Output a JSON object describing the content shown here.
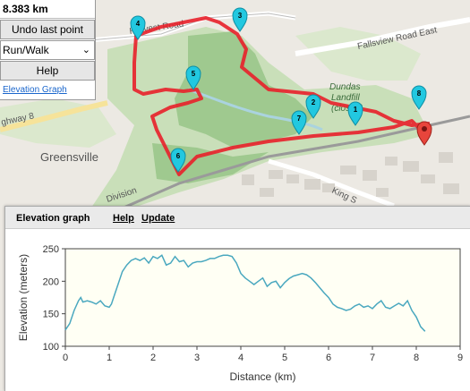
{
  "panel": {
    "distance": "8.383 km",
    "undo_label": "Undo last point",
    "mode_value": "Run/Walk",
    "help_label": "Help",
    "elevation_link": "Elevation Graph"
  },
  "map": {
    "labels": {
      "harvest_road": "Harvest Road",
      "fallsview_road": "Fallsview Road East",
      "dundas_landfill": "Dundas",
      "landfill_line2": "Landfill",
      "landfill_line3": "(closed)",
      "greensville": "Greensville",
      "highway": "ghway 8",
      "king_st": "King S",
      "division": "Division"
    },
    "markers": [
      "1",
      "2",
      "3",
      "4",
      "5",
      "6",
      "7",
      "8"
    ],
    "colors": {
      "route": "#e8202a",
      "marker": "#22c8e0",
      "park": "#c9dfb9",
      "forest": "#8dbf80",
      "water": "#aad3df",
      "rail": "#999999"
    }
  },
  "elevation": {
    "title": "Elevation graph",
    "help": "Help",
    "update": "Update"
  },
  "chart_data": {
    "type": "line",
    "xlabel": "Distance (km)",
    "ylabel": "Elevation (meters)",
    "xlim": [
      0,
      9
    ],
    "ylim": [
      100,
      250
    ],
    "xticks": [
      0,
      1,
      2,
      3,
      4,
      5,
      6,
      7,
      8,
      9
    ],
    "yticks": [
      100,
      150,
      200,
      250
    ],
    "grid": false,
    "line_color": "#4aa8bf",
    "x": [
      0.0,
      0.1,
      0.2,
      0.3,
      0.35,
      0.4,
      0.5,
      0.6,
      0.7,
      0.8,
      0.9,
      1.0,
      1.05,
      1.1,
      1.2,
      1.3,
      1.4,
      1.5,
      1.6,
      1.7,
      1.8,
      1.9,
      2.0,
      2.1,
      2.2,
      2.3,
      2.4,
      2.5,
      2.6,
      2.7,
      2.8,
      2.9,
      3.0,
      3.1,
      3.2,
      3.3,
      3.4,
      3.5,
      3.6,
      3.7,
      3.8,
      3.9,
      4.0,
      4.1,
      4.2,
      4.3,
      4.4,
      4.5,
      4.6,
      4.7,
      4.8,
      4.9,
      5.0,
      5.1,
      5.2,
      5.3,
      5.4,
      5.5,
      5.6,
      5.7,
      5.8,
      5.9,
      6.0,
      6.1,
      6.2,
      6.3,
      6.4,
      6.5,
      6.6,
      6.7,
      6.8,
      6.9,
      7.0,
      7.1,
      7.2,
      7.3,
      7.4,
      7.5,
      7.6,
      7.7,
      7.8,
      7.9,
      8.0,
      8.1,
      8.2
    ],
    "y": [
      125,
      135,
      155,
      170,
      175,
      168,
      170,
      168,
      165,
      170,
      162,
      160,
      165,
      175,
      195,
      215,
      225,
      232,
      235,
      232,
      236,
      228,
      238,
      235,
      240,
      225,
      228,
      238,
      230,
      232,
      222,
      228,
      230,
      230,
      232,
      235,
      235,
      238,
      240,
      240,
      238,
      228,
      212,
      205,
      200,
      195,
      200,
      205,
      192,
      198,
      200,
      190,
      198,
      204,
      208,
      210,
      212,
      210,
      205,
      198,
      190,
      182,
      175,
      165,
      160,
      158,
      155,
      157,
      162,
      165,
      160,
      162,
      158,
      165,
      170,
      160,
      158,
      162,
      166,
      162,
      170,
      155,
      145,
      130,
      123
    ]
  }
}
